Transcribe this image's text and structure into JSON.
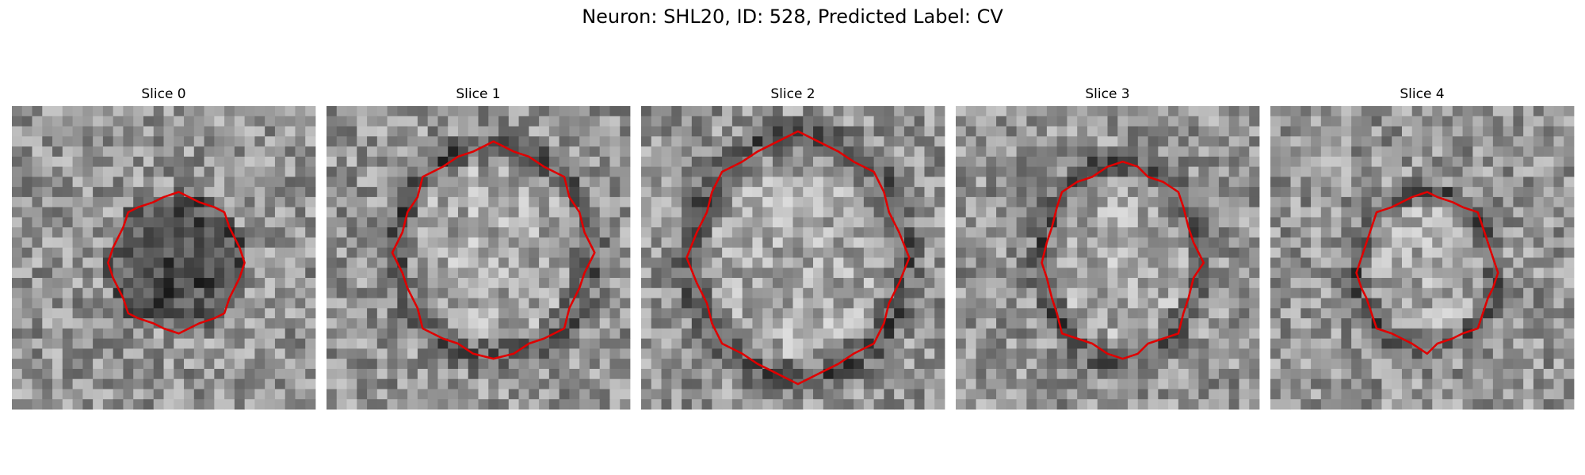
{
  "header": {
    "title": "Neuron: SHL20, ID: 528, Predicted Label: CV"
  },
  "panels": [
    {
      "title": "Slice 0"
    },
    {
      "title": "Slice 1"
    },
    {
      "title": "Slice 2"
    },
    {
      "title": "Slice 3"
    },
    {
      "title": "Slice 4"
    }
  ]
}
